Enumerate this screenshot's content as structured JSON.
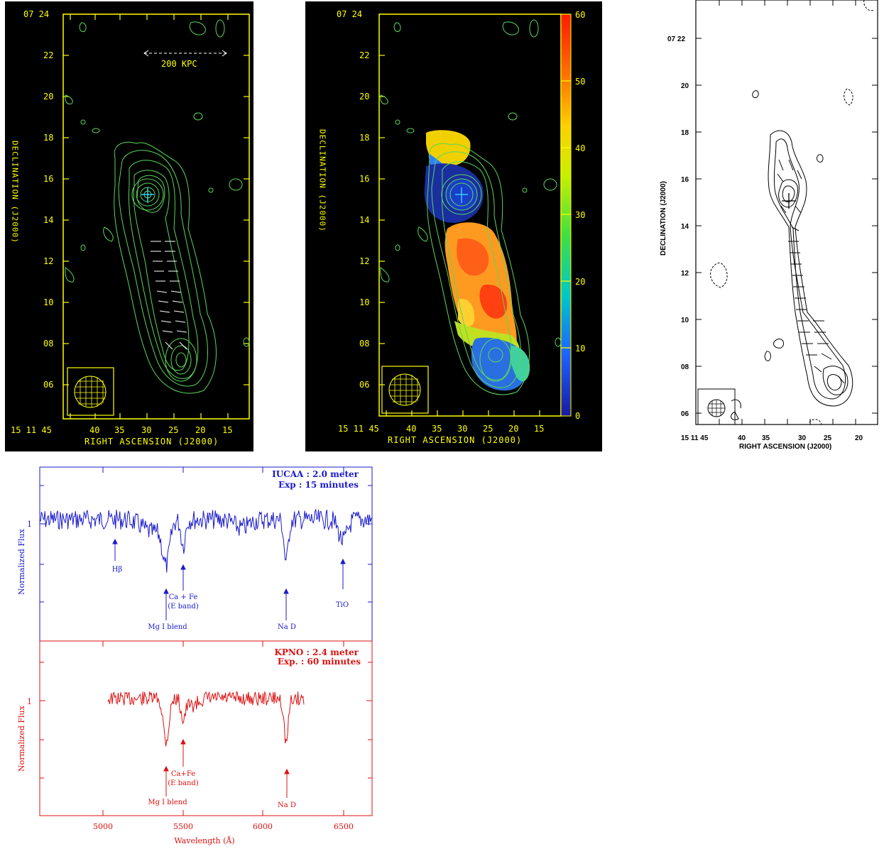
{
  "radio_maps": {
    "left": {
      "top_dec_label": "07 24",
      "dec_ticks": [
        "22",
        "20",
        "18",
        "16",
        "14",
        "12",
        "10",
        "08",
        "06"
      ],
      "ra_ticks": [
        "15 11 45",
        "40",
        "35",
        "30",
        "25",
        "20",
        "15"
      ],
      "dec_axis_label": "DECLINATION (J2000)",
      "ra_axis_label": "RIGHT ASCENSION (J2000)",
      "scale_bar_label": "200 KPC"
    },
    "middle": {
      "top_dec_label": "07 24",
      "dec_ticks": [
        "22",
        "20",
        "18",
        "16",
        "14",
        "12",
        "10",
        "08",
        "06"
      ],
      "ra_ticks": [
        "15 11 45",
        "40",
        "35",
        "30",
        "25",
        "20",
        "15"
      ],
      "dec_axis_label": "DECLINATION (J2000)",
      "ra_axis_label": "RIGHT ASCENSION (J2000)",
      "colorbar_ticks": [
        "60",
        "50",
        "40",
        "30",
        "20",
        "10",
        "0"
      ]
    },
    "right": {
      "dec_ticks": [
        "07 22",
        "20",
        "18",
        "16",
        "14",
        "12",
        "10",
        "08",
        "06"
      ],
      "ra_ticks": [
        "15 11 45",
        "40",
        "35",
        "30",
        "25",
        "20"
      ],
      "dec_axis_label": "DECLINATION (J2000)",
      "ra_axis_label": "RIGHT ASCENSION (J2000)"
    }
  },
  "spectra": {
    "x_ticks": [
      "5000",
      "5500",
      "6000",
      "6500"
    ],
    "xlabel": "Wavelength (Å)",
    "top": {
      "title_line1": "IUCAA : 2.0 meter",
      "title_line2": "Exp : 15 minutes",
      "ylabel": "Normalized Flux",
      "y_tick": "1",
      "color": "#1a1acc",
      "lines": {
        "hbeta": "Hβ",
        "cafe1": "Ca + Fe",
        "cafe2": "(E band)",
        "mg": "Mg I blend",
        "nad": "Na D",
        "tio": "TiO"
      }
    },
    "bottom": {
      "title_line1": "KPNO : 2.4 meter",
      "title_line2": "Exp. : 60 minutes",
      "ylabel": "Normalized Flux",
      "y_tick": "1",
      "color": "#dd1111",
      "lines": {
        "cafe1": "Ca+Fe",
        "cafe2": "(E band)",
        "mg": "Mg I blend",
        "nad": "Na D"
      }
    }
  }
}
